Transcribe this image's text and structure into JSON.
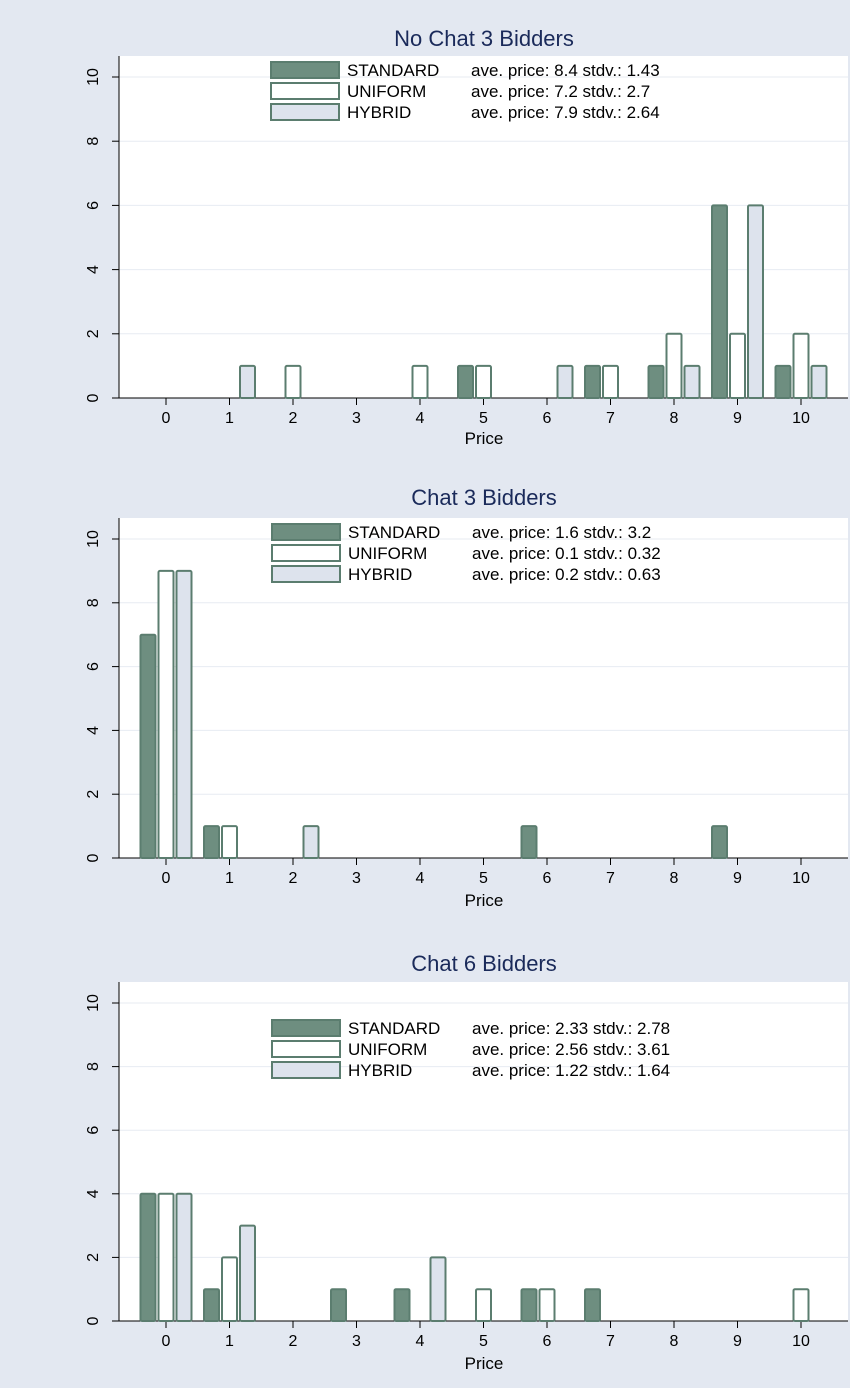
{
  "colors": {
    "background": "#e3e8f1",
    "plot_background": "#ffffff",
    "standard_fill": "#6e8e80",
    "uniform_fill": "#ffffff",
    "hybrid_fill": "#dde3ed",
    "bar_stroke": "#5b7d6f",
    "title": "#1a2a5a",
    "grid": "#e7ebf2"
  },
  "chart_data": [
    {
      "type": "bar",
      "title": "No Chat 3 Bidders",
      "xlabel": "Price",
      "ylabel": "",
      "ylim": [
        0,
        10
      ],
      "yticks": [
        "0",
        "2",
        "4",
        "6",
        "8",
        "10"
      ],
      "grid": true,
      "legend_position": "top",
      "categories": [
        "0",
        "1",
        "2",
        "3",
        "4",
        "5",
        "6",
        "7",
        "8",
        "9",
        "10"
      ],
      "series": [
        {
          "name": "STANDARD",
          "stats": "ave. price: 8.4 stdv.: 1.43",
          "values": [
            0,
            0,
            0,
            0,
            0,
            1,
            0,
            1,
            1,
            6,
            1
          ]
        },
        {
          "name": "UNIFORM",
          "stats": "ave. price: 7.2 stdv.: 2.7",
          "values": [
            0,
            0,
            1,
            0,
            1,
            1,
            0,
            1,
            2,
            2,
            2
          ]
        },
        {
          "name": "HYBRID",
          "stats": "ave. price: 7.9 stdv.: 2.64",
          "values": [
            0,
            1,
            0,
            0,
            0,
            0,
            1,
            0,
            1,
            6,
            1
          ]
        }
      ]
    },
    {
      "type": "bar",
      "title": "Chat 3 Bidders",
      "xlabel": "Price",
      "ylabel": "",
      "ylim": [
        0,
        10
      ],
      "yticks": [
        "0",
        "2",
        "4",
        "6",
        "8",
        "10"
      ],
      "grid": true,
      "legend_position": "top",
      "categories": [
        "0",
        "1",
        "2",
        "3",
        "4",
        "5",
        "6",
        "7",
        "8",
        "9",
        "10"
      ],
      "series": [
        {
          "name": "STANDARD",
          "stats": "ave. price: 1.6 stdv.: 3.2",
          "values": [
            7,
            1,
            0,
            0,
            0,
            0,
            1,
            0,
            0,
            1,
            0
          ]
        },
        {
          "name": "UNIFORM",
          "stats": "ave. price: 0.1 stdv.: 0.32",
          "values": [
            9,
            1,
            0,
            0,
            0,
            0,
            0,
            0,
            0,
            0,
            0
          ]
        },
        {
          "name": "HYBRID",
          "stats": "ave. price: 0.2 stdv.: 0.63",
          "values": [
            9,
            0,
            1,
            0,
            0,
            0,
            0,
            0,
            0,
            0,
            0
          ]
        }
      ]
    },
    {
      "type": "bar",
      "title": "Chat 6 Bidders",
      "xlabel": "Price",
      "ylabel": "",
      "ylim": [
        0,
        10
      ],
      "yticks": [
        "0",
        "2",
        "4",
        "6",
        "8",
        "10"
      ],
      "grid": true,
      "legend_position": "top",
      "categories": [
        "0",
        "1",
        "2",
        "3",
        "4",
        "5",
        "6",
        "7",
        "8",
        "9",
        "10"
      ],
      "series": [
        {
          "name": "STANDARD",
          "stats": "ave. price: 2.33 stdv.: 2.78",
          "values": [
            4,
            1,
            0,
            1,
            1,
            0,
            1,
            1,
            0,
            0,
            0
          ]
        },
        {
          "name": "UNIFORM",
          "stats": "ave. price: 2.56 stdv.: 3.61",
          "values": [
            4,
            2,
            0,
            0,
            0,
            1,
            1,
            0,
            0,
            0,
            1
          ]
        },
        {
          "name": "HYBRID",
          "stats": "ave. price: 1.22 stdv.: 1.64",
          "values": [
            4,
            3,
            0,
            0,
            2,
            0,
            0,
            0,
            0,
            0,
            0
          ]
        }
      ]
    }
  ]
}
